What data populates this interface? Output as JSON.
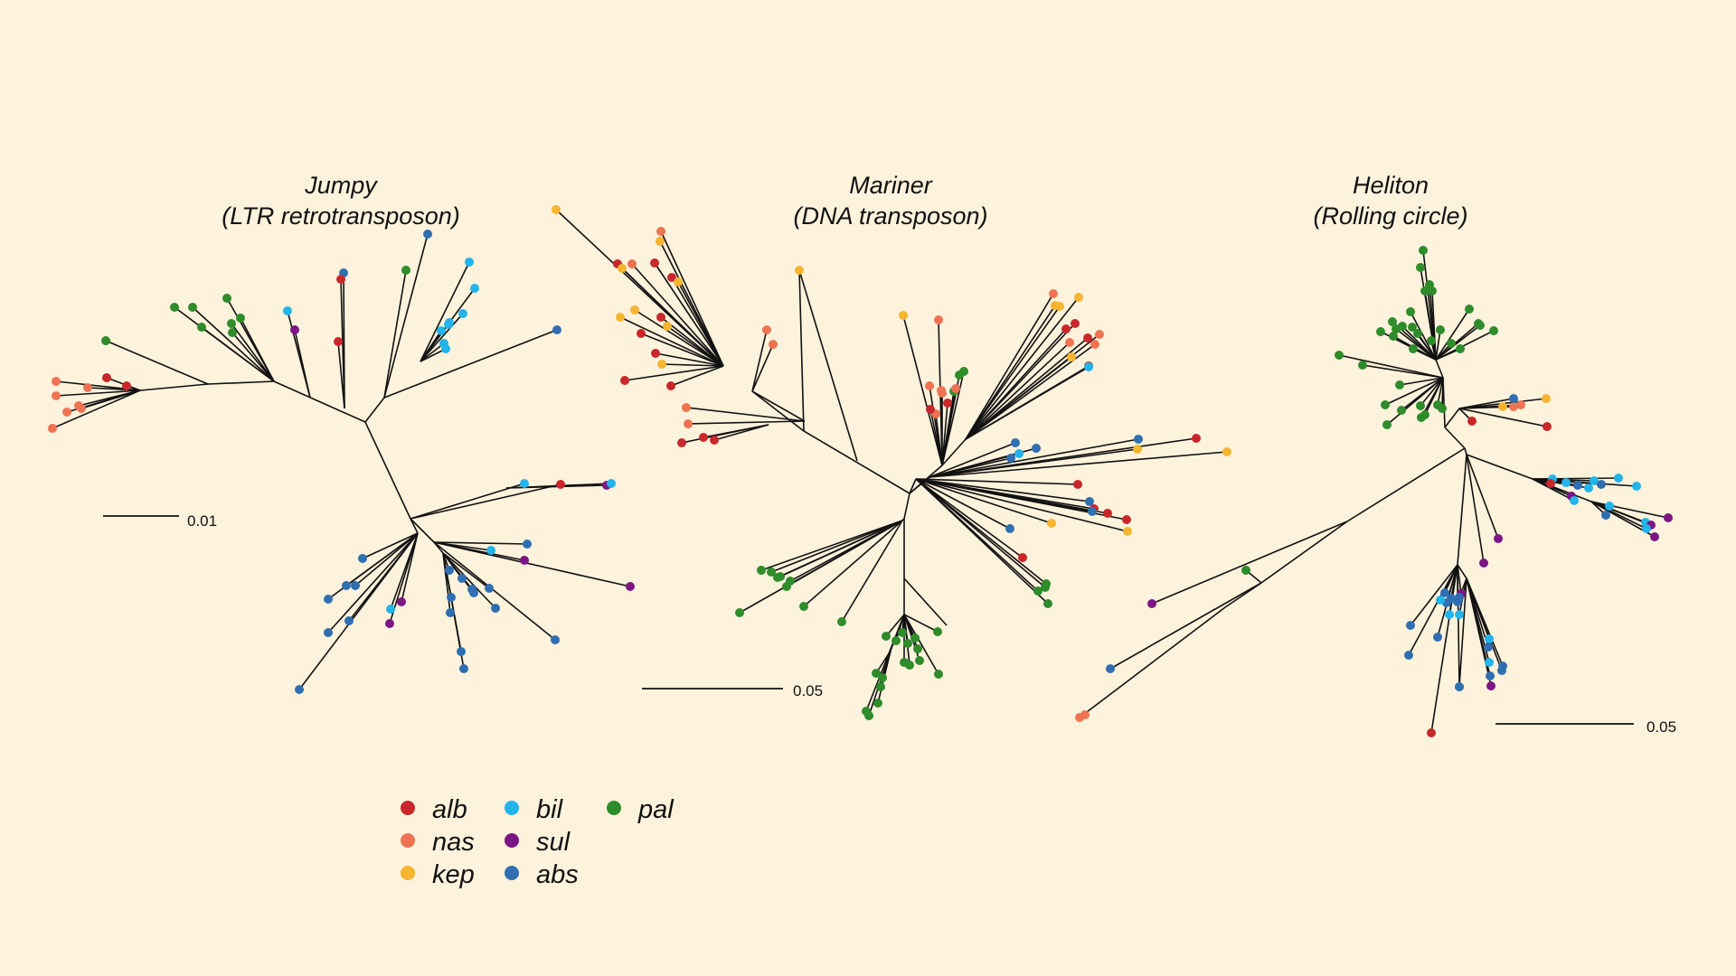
{
  "colors": {
    "alb": "#c9272b",
    "nas": "#ef7353",
    "kep": "#f6b52f",
    "bil": "#22b4ea",
    "sul": "#7d1685",
    "abs": "#2f6fb1",
    "pal": "#2e8c2a"
  },
  "trees": [
    {
      "id": "jumpy",
      "title_line1": "Jumpy",
      "title_line2": "(LTR retrotransposon)",
      "scale_label": "0.01"
    },
    {
      "id": "mariner",
      "title_line1": "Mariner",
      "title_line2": "(DNA transposon)",
      "scale_label": "0.05"
    },
    {
      "id": "heliton",
      "title_line1": "Heliton",
      "title_line2": "(Rolling circle)",
      "scale_label": "0.05"
    }
  ],
  "legend": [
    {
      "key": "alb",
      "label": "alb"
    },
    {
      "key": "nas",
      "label": "nas"
    },
    {
      "key": "kep",
      "label": "kep"
    },
    {
      "key": "bil",
      "label": "bil"
    },
    {
      "key": "sul",
      "label": "sul"
    },
    {
      "key": "abs",
      "label": "abs"
    },
    {
      "key": "pal",
      "label": "pal"
    }
  ]
}
